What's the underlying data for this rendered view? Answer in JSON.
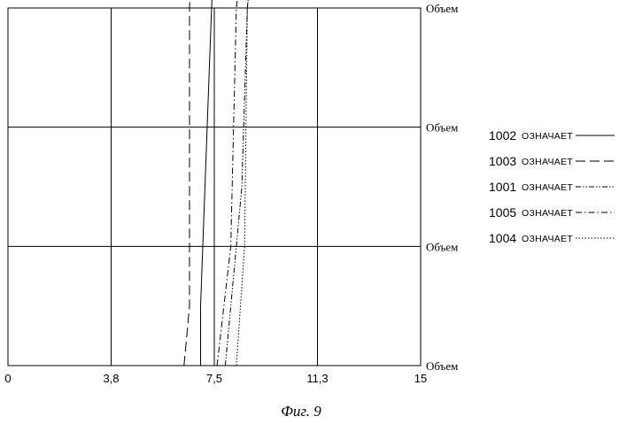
{
  "chart_data": {
    "type": "line",
    "caption": "Фиг. 9",
    "xlim": [
      0,
      15
    ],
    "x_ticks": [
      "0",
      "3,8",
      "7,5",
      "11,3",
      "15"
    ],
    "x_tick_values": [
      0,
      3.75,
      7.5,
      11.25,
      15
    ],
    "y_labels": [
      "Объем",
      "Объем",
      "Объем",
      "Объем"
    ],
    "y_levels": 4,
    "grid": true,
    "legend_position": "right",
    "legend_word": "ОЗНАЧАЕТ",
    "series": [
      {
        "name": "1002",
        "dash": "solid",
        "points": [
          [
            7.0,
            0
          ],
          [
            7.0,
            0.5
          ],
          [
            7.4,
            3.0
          ],
          [
            7.6,
            4.0
          ]
        ]
      },
      {
        "name": "1003",
        "dash": "longdash",
        "points": [
          [
            6.4,
            0
          ],
          [
            6.6,
            0.5
          ],
          [
            6.6,
            3.0
          ],
          [
            6.8,
            4.0
          ]
        ]
      },
      {
        "name": "1001",
        "dash": "dashdotdot",
        "points": [
          [
            7.9,
            0
          ],
          [
            8.5,
            1.5
          ],
          [
            8.7,
            3.0
          ],
          [
            9.1,
            4.0
          ]
        ]
      },
      {
        "name": "1005",
        "dash": "dashdot",
        "points": [
          [
            7.6,
            0
          ],
          [
            8.1,
            1.0
          ],
          [
            8.3,
            3.0
          ],
          [
            8.8,
            4.0
          ]
        ]
      },
      {
        "name": "1004",
        "dash": "dotted",
        "points": [
          [
            8.3,
            0
          ],
          [
            8.6,
            1.0
          ],
          [
            8.7,
            3.0
          ],
          [
            9.2,
            4.0
          ]
        ]
      }
    ]
  }
}
